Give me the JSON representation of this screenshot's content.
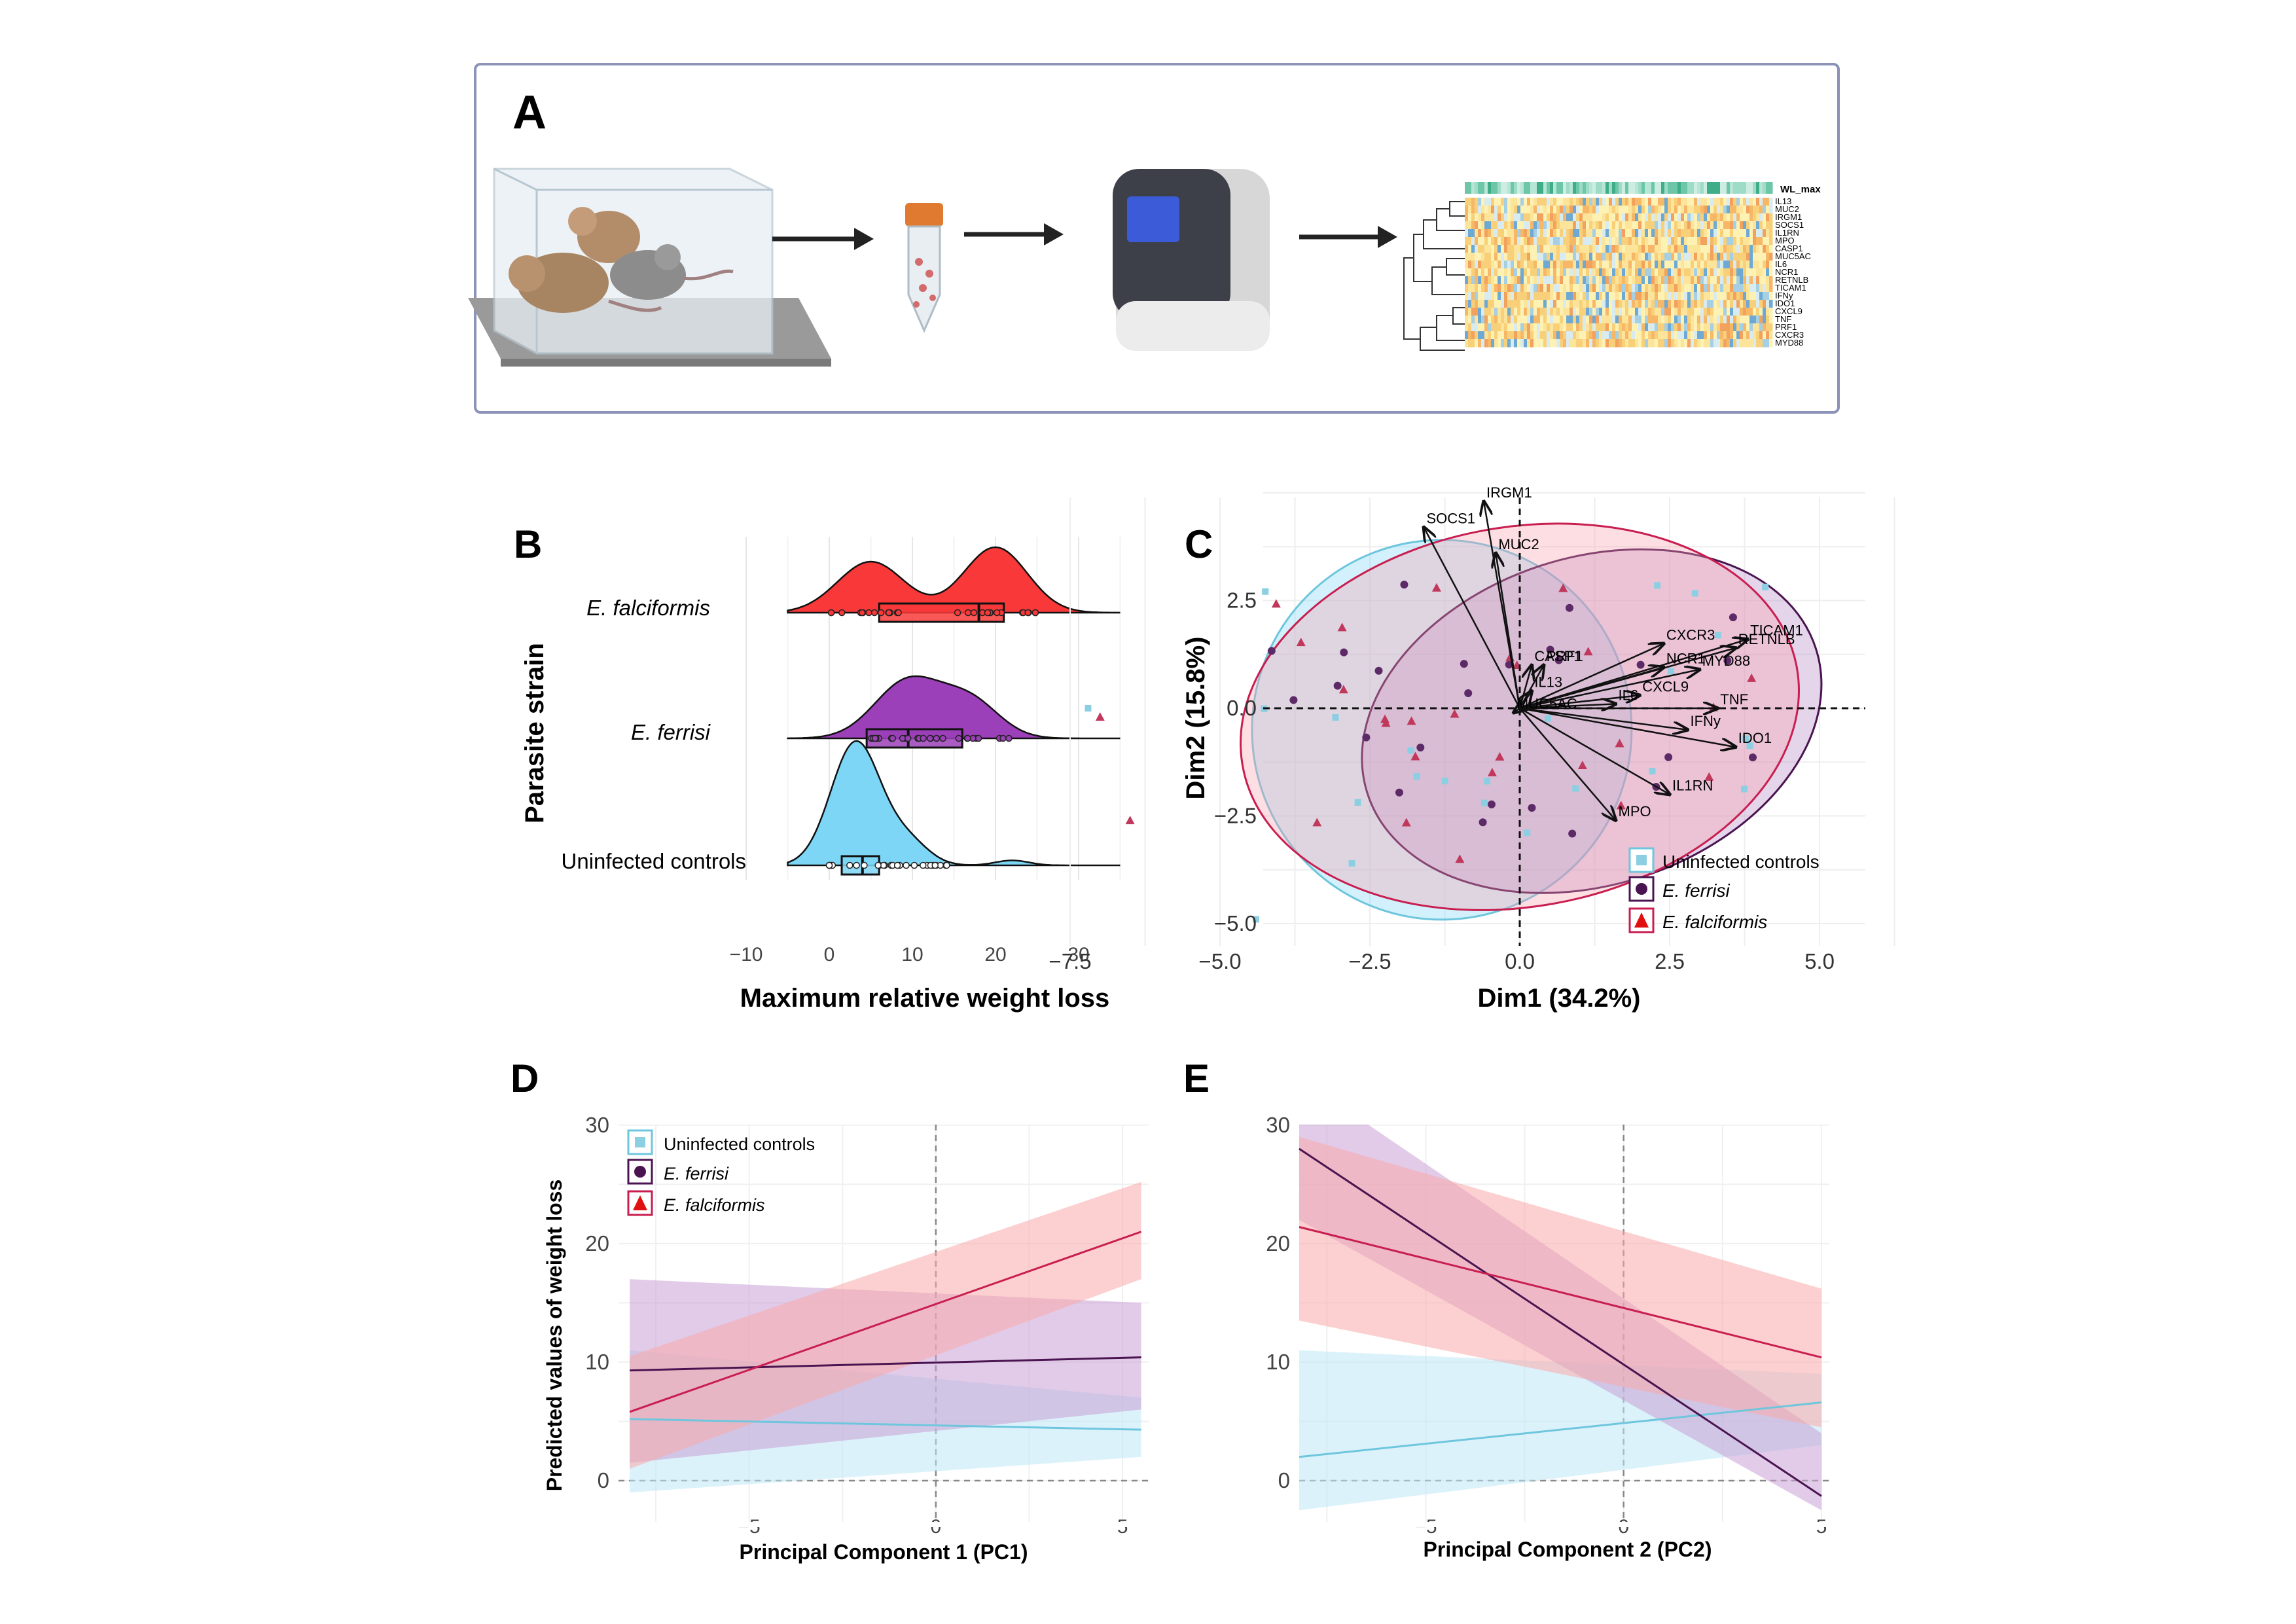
{
  "panel_a": {
    "letter": "A",
    "heatmap_annotation": "WL_max",
    "heatmap_genes": [
      "IL13",
      "MUC2",
      "IRGM1",
      "SOCS1",
      "IL1RN",
      "MPO",
      "CASP1",
      "MUC5AC",
      "IL6",
      "NCR1",
      "RETNLB",
      "TICAM1",
      "IFNy",
      "IDO1",
      "CXCL9",
      "TNF",
      "PRF1",
      "CXCR3",
      "MYD88"
    ],
    "icons": [
      "mouse-cage-icon",
      "sample-tube-icon",
      "pcr-machine-icon",
      "heatmap-icon"
    ]
  },
  "panel_b": {
    "letter": "B",
    "ylabel": "Parasite strain",
    "xlabel": "Maximum relative weight loss",
    "groups": [
      "E. falciformis",
      "E. ferrisi",
      "Uninfected controls"
    ],
    "colors": [
      "#f93939",
      "#9b40b8",
      "#7dd6f5"
    ]
  },
  "panel_c": {
    "letter": "C",
    "xlabel": "Dim1 (34.2%)",
    "ylabel": "Dim2 (15.8%)",
    "legend": [
      "Uninfected controls",
      "E. ferrisi",
      "E. falciformis"
    ]
  },
  "panel_d": {
    "letter": "D",
    "xlabel": "Principal Component 1 (PC1)",
    "ylabel": "Predicted values of weight loss",
    "legend": [
      "Uninfected controls",
      "E. ferrisi",
      "E. falciformis"
    ]
  },
  "panel_e": {
    "letter": "E",
    "xlabel": "Principal Component 2 (PC2)"
  },
  "colors": {
    "uninfected": "#6ec6dd",
    "ferrisi": "#4a1450",
    "falciformis": "#c81e50",
    "falciformis_fill": "#f93939",
    "ferrisi_fill": "#9b40b8",
    "uninfected_fill": "#7dd6f5"
  },
  "chart_data": [
    {
      "type": "density",
      "panel": "B",
      "xlabel": "Maximum relative weight loss",
      "ylabel": "Parasite strain",
      "xlim": [
        -10,
        36
      ],
      "xticks": [
        -10,
        0,
        10,
        20,
        30
      ],
      "series": [
        {
          "name": "E. falciformis",
          "box": {
            "q1": 6,
            "median": 18,
            "q3": 21
          },
          "density_peaks": [
            5,
            20
          ]
        },
        {
          "name": "E. ferrisi",
          "box": {
            "q1": 4.5,
            "median": 9.5,
            "q3": 16
          },
          "density_peaks": [
            9.5,
            17
          ]
        },
        {
          "name": "Uninfected controls",
          "box": {
            "q1": 1.5,
            "median": 4,
            "q3": 6
          },
          "density_peaks": [
            3
          ]
        }
      ]
    },
    {
      "type": "scatter",
      "panel": "C",
      "xlabel": "Dim1 (34.2%)",
      "ylabel": "Dim2 (15.8%)",
      "xlim": [
        -8,
        6.5
      ],
      "ylim": [
        -5.5,
        4.8
      ],
      "xticks": [
        -7.5,
        -5.0,
        -2.5,
        0.0,
        2.5,
        5.0
      ],
      "yticks": [
        -5.0,
        -2.5,
        0.0,
        2.5
      ],
      "xtick_labels": [
        "−7.5",
        "−5.0",
        "−2.5",
        "0.0",
        "2.5",
        "5.0"
      ],
      "ytick_labels": [
        "−5.0",
        "−2.5",
        "0.0",
        "2.5"
      ],
      "loadings": [
        {
          "label": "IRGM1",
          "x": -0.6,
          "y": 4.8
        },
        {
          "label": "SOCS1",
          "x": -1.6,
          "y": 4.2
        },
        {
          "label": "MUC2",
          "x": -0.4,
          "y": 3.6
        },
        {
          "label": "TICAM1",
          "x": 3.8,
          "y": 1.6
        },
        {
          "label": "RETNLB",
          "x": 3.6,
          "y": 1.4
        },
        {
          "label": "CXCR3",
          "x": 2.4,
          "y": 1.5
        },
        {
          "label": "PRF1",
          "x": 0.4,
          "y": 1.0
        },
        {
          "label": "CASP1",
          "x": 0.2,
          "y": 1.0
        },
        {
          "label": "NCR1",
          "x": 2.4,
          "y": 0.95
        },
        {
          "label": "MYD88",
          "x": 3.0,
          "y": 0.9
        },
        {
          "label": "IL13",
          "x": 0.2,
          "y": 0.4
        },
        {
          "label": "CXCL9",
          "x": 2.0,
          "y": 0.3
        },
        {
          "label": "IL6",
          "x": 1.6,
          "y": 0.1
        },
        {
          "label": "TNF",
          "x": 3.3,
          "y": 0.0
        },
        {
          "label": "IFNy",
          "x": 2.8,
          "y": -0.5
        },
        {
          "label": "IDO1",
          "x": 3.6,
          "y": -0.9
        },
        {
          "label": "MUC5AC",
          "x": -0.1,
          "y": -0.1
        },
        {
          "label": "IL1RN",
          "x": 2.5,
          "y": -2.0
        },
        {
          "label": "MPO",
          "x": 1.6,
          "y": -2.6
        }
      ]
    },
    {
      "type": "line",
      "panel": "D",
      "xlabel": "Principal Component 1 (PC1)",
      "ylabel": "Predicted values of weight loss",
      "xlim": [
        -8.5,
        5.7
      ],
      "ylim": [
        -1,
        31
      ],
      "xticks": [
        -5,
        0,
        5
      ],
      "yticks": [
        0,
        10,
        20,
        30
      ],
      "xtick_labels": [
        "−5",
        "0",
        "5"
      ],
      "series": [
        {
          "name": "Uninfected controls",
          "x": [
            -8.2,
            5.5
          ],
          "y": [
            5.2,
            4.3
          ],
          "ci_low": [
            -1,
            2
          ],
          "ci_high": [
            11,
            7
          ]
        },
        {
          "name": "E. ferrisi",
          "x": [
            -8.2,
            5.5
          ],
          "y": [
            9.3,
            10.4
          ],
          "ci_low": [
            1.5,
            6
          ],
          "ci_high": [
            17,
            15
          ]
        },
        {
          "name": "E. falciformis",
          "x": [
            -8.2,
            5.5
          ],
          "y": [
            5.8,
            21.0
          ],
          "ci_low": [
            1,
            17
          ],
          "ci_high": [
            10.5,
            25.2
          ]
        }
      ]
    },
    {
      "type": "line",
      "panel": "E",
      "xlabel": "Principal Component 2 (PC2)",
      "ylabel": "",
      "xlim": [
        -8.5,
        5.7
      ],
      "ylim": [
        -1,
        31
      ],
      "xticks": [
        -5,
        0,
        5
      ],
      "yticks": [
        0,
        10,
        20,
        30
      ],
      "xtick_labels": [
        "−5",
        "0",
        "5"
      ],
      "series": [
        {
          "name": "Uninfected controls",
          "x": [
            -8.2,
            5.0
          ],
          "y": [
            2.0,
            6.6
          ],
          "ci_low": [
            -2.5,
            3
          ],
          "ci_high": [
            11,
            9
          ]
        },
        {
          "name": "E. ferrisi",
          "x": [
            -8.2,
            5.0
          ],
          "y": [
            28.0,
            -1.3
          ],
          "ci_low": [
            22,
            -6
          ],
          "ci_high": [
            34,
            4
          ]
        },
        {
          "name": "E. falciformis",
          "x": [
            -8.2,
            5.0
          ],
          "y": [
            21.4,
            10.4
          ],
          "ci_low": [
            13.5,
            4.5
          ],
          "ci_high": [
            29,
            16.2
          ]
        }
      ]
    }
  ]
}
